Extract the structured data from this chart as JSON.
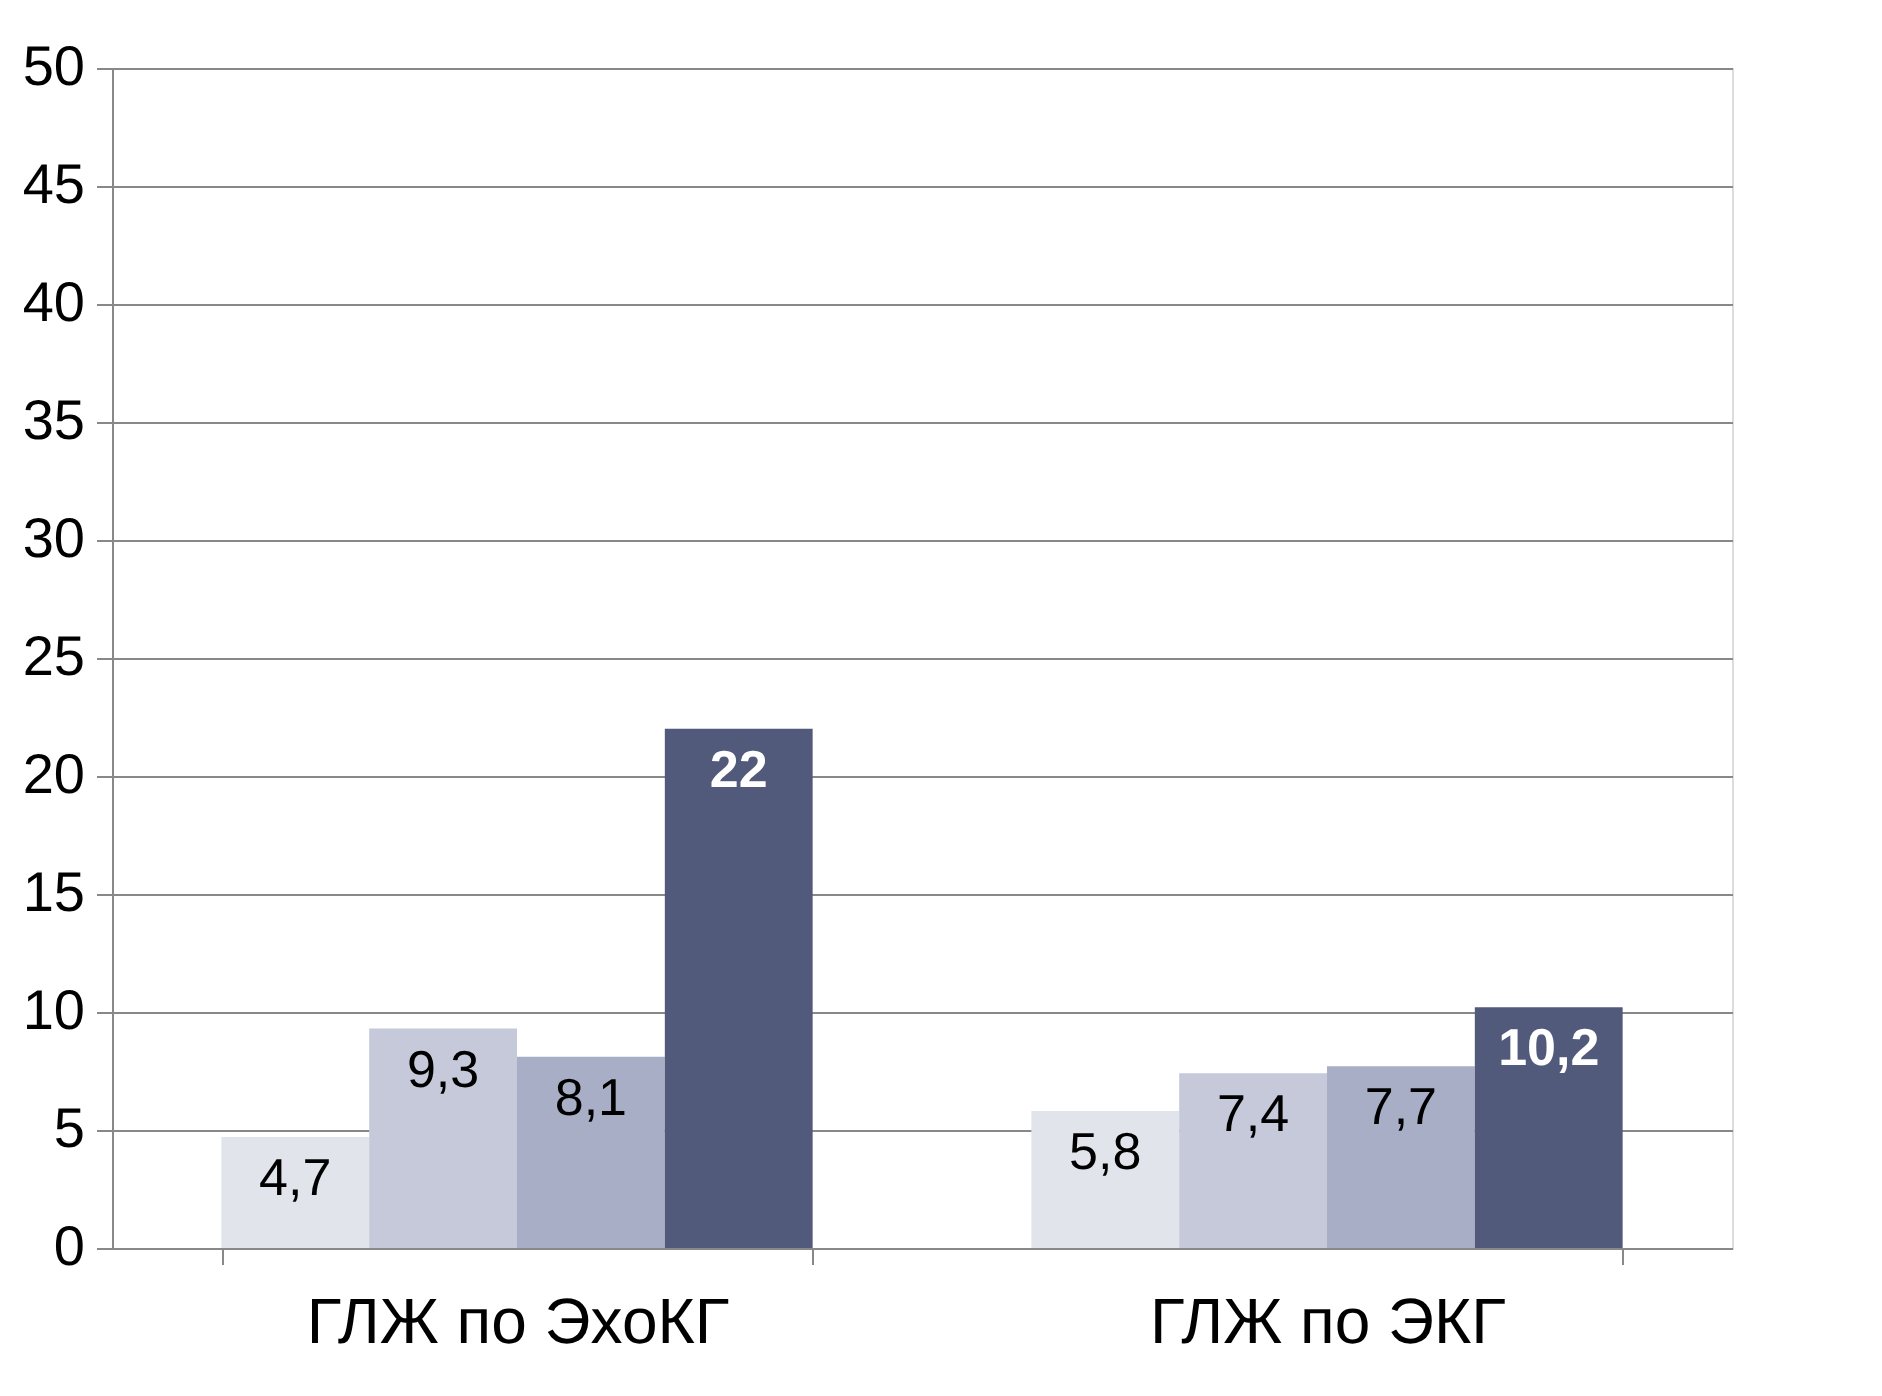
{
  "chart_data": {
    "type": "bar",
    "categories": [
      "ГЛЖ по ЭхоКГ",
      "ГЛЖ по ЭКГ"
    ],
    "series": [
      {
        "color": "#e2e4ec",
        "values": [
          4.7,
          5.8
        ],
        "value_labels": [
          "4,7",
          "5,8"
        ]
      },
      {
        "color": "#c6c9da",
        "values": [
          9.3,
          7.4
        ],
        "value_labels": [
          "9,3",
          "7,4"
        ]
      },
      {
        "color": "#a9aec7",
        "values": [
          8.1,
          7.7
        ],
        "value_labels": [
          "8,1",
          "7,7"
        ]
      },
      {
        "color": "#525a7b",
        "values": [
          22,
          10.2
        ],
        "value_labels": [
          "22",
          "10,2"
        ]
      }
    ],
    "ylim": [
      0,
      50
    ],
    "yticks": [
      0,
      5,
      10,
      15,
      20,
      25,
      30,
      35,
      40,
      45,
      50
    ],
    "grid": "y",
    "legend": false
  }
}
